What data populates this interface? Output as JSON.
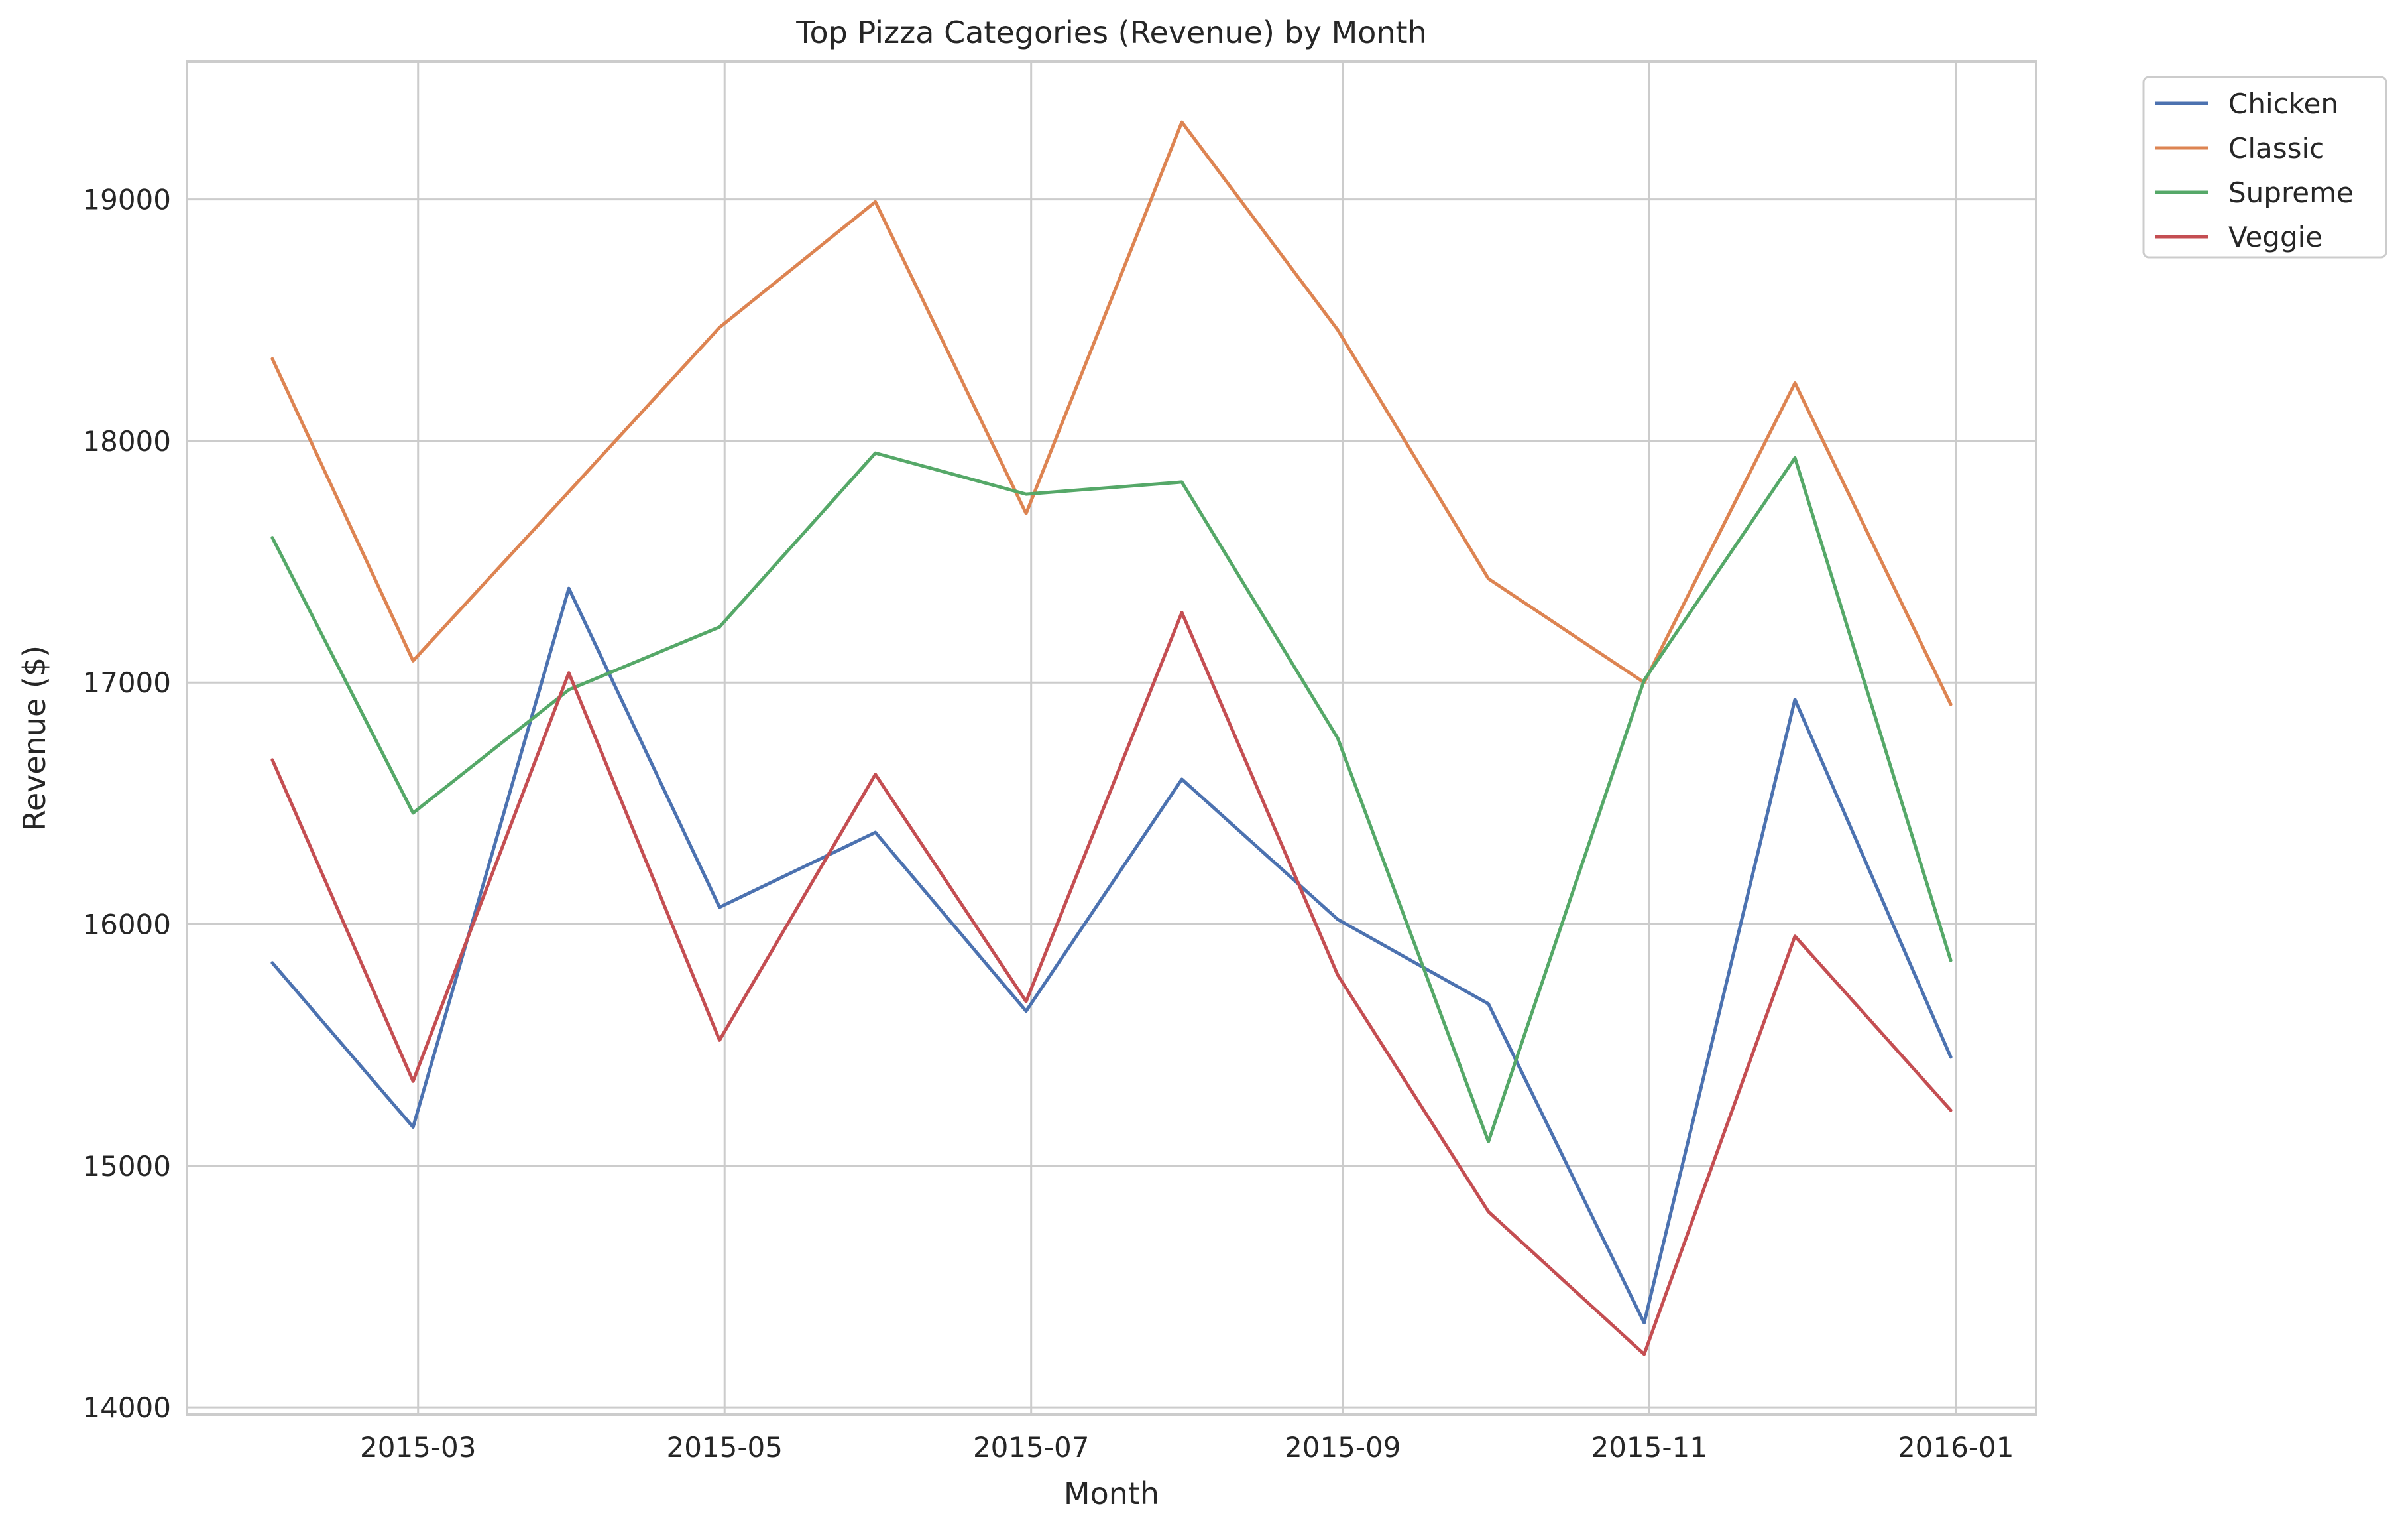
{
  "chart_data": {
    "type": "line",
    "title": "Top Pizza Categories (Revenue) by Month",
    "xlabel": "Month",
    "ylabel": "Revenue ($)",
    "x": [
      "2015-01-31",
      "2015-02-28",
      "2015-03-31",
      "2015-04-30",
      "2015-05-31",
      "2015-06-30",
      "2015-07-31",
      "2015-08-31",
      "2015-09-30",
      "2015-10-31",
      "2015-11-30",
      "2015-12-31"
    ],
    "x_ticks": [
      "2015-03",
      "2015-05",
      "2015-07",
      "2015-09",
      "2015-11",
      "2016-01"
    ],
    "xlim": [
      "2015-01-14",
      "2016-01-17"
    ],
    "y_ticks": [
      14000,
      15000,
      16000,
      17000,
      18000,
      19000
    ],
    "ylim": [
      13970,
      19570
    ],
    "grid": true,
    "legend_position": "outside top-right",
    "series": [
      {
        "name": "Chicken",
        "color": "#4c72b0",
        "values": [
          15840,
          15160,
          17390,
          16070,
          16380,
          15640,
          16600,
          16020,
          15670,
          14350,
          16930,
          15450
        ]
      },
      {
        "name": "Classic",
        "color": "#dd8452",
        "values": [
          18340,
          17090,
          17790,
          18470,
          18990,
          17700,
          19320,
          18460,
          17430,
          17000,
          18240,
          16910
        ]
      },
      {
        "name": "Supreme",
        "color": "#55a868",
        "values": [
          17600,
          16460,
          16970,
          17230,
          17950,
          17780,
          17830,
          16770,
          15100,
          17010,
          17930,
          15850
        ]
      },
      {
        "name": "Veggie",
        "color": "#c44e52",
        "values": [
          16680,
          15350,
          17040,
          15520,
          16620,
          15680,
          17290,
          15790,
          14810,
          14220,
          15950,
          15230
        ]
      }
    ]
  }
}
